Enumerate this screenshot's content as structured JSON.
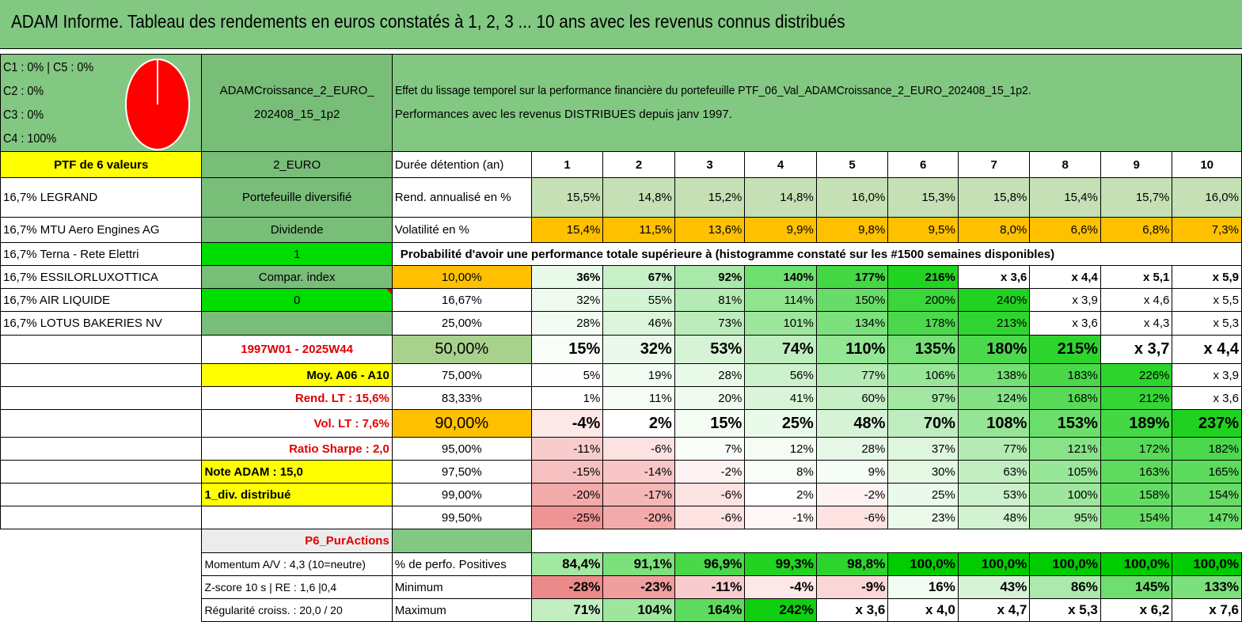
{
  "title": "ADAM Informe. Tableau des rendements en euros constatés à 1, 2, 3 ... 10 ans avec les revenus connus distribués",
  "legend": [
    "C1 : 0% | C5 : 0%",
    "C2 : 0%",
    "C3 : 0%",
    "C4 : 100%"
  ],
  "pie": {
    "C4": 100,
    "color": "#ff0000"
  },
  "fund_name_line1": "ADAMCroissance_2_EURO_",
  "fund_name_line2": "202408_15_1p2",
  "description_line1": "Effet du lissage temporel sur la performance financière du portefeuille PTF_06_Val_ADAMCroissance_2_EURO_202408_15_1p2.",
  "description_line2": "Performances avec les revenus DISTRIBUES depuis janv 1997.",
  "ptf_label": "PTF de 6 valeurs",
  "currency": "2_EURO",
  "holding_label": "Durée détention (an)",
  "years": [
    "1",
    "2",
    "3",
    "4",
    "5",
    "6",
    "7",
    "8",
    "9",
    "10"
  ],
  "holdings": [
    "16,7% LEGRAND",
    "16,7% MTU Aero Engines AG",
    "16,7% Terna - Rete Elettri",
    "16,7% ESSILORLUXOTTICA",
    "16,7% AIR LIQUIDE",
    "16,7% LOTUS BAKERIES NV"
  ],
  "info": {
    "diversified": "Portefeuille diversifié",
    "dividend": "Dividende",
    "dividend_value": "1",
    "compar_index": "Compar. index",
    "compar_value": "0",
    "period": "1997W01 - 2025W44",
    "moy": "Moy. A06 - A10",
    "rend_lt": "Rend. LT : 15,6%",
    "vol_lt": "Vol. LT : 7,6%",
    "sharpe": "Ratio Sharpe : 2,0",
    "note": "Note ADAM : 15,0",
    "div_distrib": "1_div. distribué",
    "profile": "P6_PurActions",
    "momentum": "Momentum A/V : 4,3 (10=neutre)",
    "zscore": "Z-score 10 s | RE : 1,6 |0,4",
    "regularite": "Régularité croiss. : 20,0 / 20"
  },
  "rend_label": "Rend. annualisé en %",
  "rend": [
    "15,5%",
    "14,8%",
    "15,2%",
    "14,8%",
    "16,0%",
    "15,3%",
    "15,8%",
    "15,4%",
    "15,7%",
    "16,0%"
  ],
  "vol_label": "Volatilité en %",
  "vol": [
    "15,4%",
    "11,5%",
    "13,6%",
    "9,9%",
    "9,8%",
    "9,5%",
    "8,0%",
    "6,6%",
    "6,8%",
    "7,3%"
  ],
  "prob_header": "Probabilité d'avoir une performance totale supérieure à (histogramme constaté sur les #1500 semaines disponibles)",
  "prob_rows": [
    {
      "p": "10,00%",
      "v": [
        "36%",
        "67%",
        "92%",
        "140%",
        "177%",
        "216%",
        "x 3,6",
        "x 4,4",
        "x 5,1",
        "x 5,9"
      ],
      "bg": [
        "#eafaea",
        "#c8f0c8",
        "#a8e8a8",
        "#6ee06e",
        "#44d844",
        "#22d422",
        "#fff",
        "#fff",
        "#fff",
        "#fff"
      ]
    },
    {
      "p": "16,67%",
      "v": [
        "32%",
        "55%",
        "81%",
        "114%",
        "150%",
        "200%",
        "240%",
        "x 3,9",
        "x 4,6",
        "x 5,5"
      ],
      "bg": [
        "#eefbee",
        "#d4f3d4",
        "#b4ebb4",
        "#90e490",
        "#68dc68",
        "#3ad63a",
        "#22d222",
        "#fff",
        "#fff",
        "#fff"
      ]
    },
    {
      "p": "25,00%",
      "v": [
        "28%",
        "46%",
        "73%",
        "101%",
        "134%",
        "178%",
        "213%",
        "x 3,6",
        "x 4,3",
        "x 5,3"
      ],
      "bg": [
        "#f2fcf2",
        "#dcf5dc",
        "#bcecbc",
        "#9ee69e",
        "#7ce07c",
        "#4cd84c",
        "#30d430",
        "#fff",
        "#fff",
        "#fff"
      ]
    },
    {
      "p": "50,00%",
      "v": [
        "15%",
        "32%",
        "53%",
        "74%",
        "110%",
        "135%",
        "180%",
        "215%",
        "x 3,7",
        "x 4,4"
      ],
      "bg": [
        "#f8fdf8",
        "#eaf9ea",
        "#d6f3d6",
        "#c0edc0",
        "#94e594",
        "#78df78",
        "#4cd84c",
        "#2ed42e",
        "#fff",
        "#fff"
      ]
    },
    {
      "p": "75,00%",
      "v": [
        "5%",
        "19%",
        "28%",
        "56%",
        "77%",
        "106%",
        "138%",
        "183%",
        "226%",
        "x 3,9"
      ],
      "bg": [
        "#fdfefd",
        "#f2fcf2",
        "#e8f9e8",
        "#ccf1cc",
        "#b4ebb4",
        "#98e698",
        "#74df74",
        "#48d848",
        "#2cd42c",
        "#fff"
      ]
    },
    {
      "p": "83,33%",
      "v": [
        "1%",
        "11%",
        "20%",
        "41%",
        "60%",
        "97%",
        "124%",
        "168%",
        "212%",
        "x 3,6"
      ],
      "bg": [
        "#ffffff",
        "#f6fdf6",
        "#eefbee",
        "#daf4da",
        "#c6efc6",
        "#a2e8a2",
        "#84e184",
        "#58da58",
        "#34d534",
        "#fff"
      ]
    },
    {
      "p": "90,00%",
      "v": [
        "-4%",
        "2%",
        "15%",
        "25%",
        "48%",
        "70%",
        "108%",
        "153%",
        "189%",
        "237%"
      ],
      "bg": [
        "#fde8e8",
        "#ffffff",
        "#f4fcf4",
        "#eafaea",
        "#d6f3d6",
        "#c0edc0",
        "#96e596",
        "#6cde6c",
        "#44d844",
        "#20d220"
      ]
    },
    {
      "p": "95,00%",
      "v": [
        "-11%",
        "-6%",
        "7%",
        "12%",
        "28%",
        "37%",
        "77%",
        "121%",
        "172%",
        "182%"
      ],
      "bg": [
        "#f8cccc",
        "#fde2e2",
        "#fafefa",
        "#f4fcf4",
        "#e6f9e6",
        "#ddf6dd",
        "#b4ebb4",
        "#88e288",
        "#58da58",
        "#4cd84c"
      ]
    },
    {
      "p": "97,50%",
      "v": [
        "-15%",
        "-14%",
        "-2%",
        "8%",
        "9%",
        "30%",
        "63%",
        "105%",
        "163%",
        "165%"
      ],
      "bg": [
        "#f6c0c0",
        "#f8c6c6",
        "#fef2f2",
        "#f8fdf8",
        "#f6fdf6",
        "#e4f8e4",
        "#c2eec2",
        "#98e698",
        "#5edb5e",
        "#5cda5c"
      ]
    },
    {
      "p": "99,00%",
      "v": [
        "-20%",
        "-17%",
        "-6%",
        "2%",
        "-2%",
        "25%",
        "53%",
        "100%",
        "158%",
        "154%"
      ],
      "bg": [
        "#f2aaaa",
        "#f4b8b8",
        "#fde2e2",
        "#ffffff",
        "#fef2f2",
        "#eafaea",
        "#ccf1cc",
        "#9ee69e",
        "#62dc62",
        "#66dc66"
      ]
    },
    {
      "p": "99,50%",
      "v": [
        "-25%",
        "-20%",
        "-6%",
        "-1%",
        "-6%",
        "23%",
        "48%",
        "95%",
        "154%",
        "147%"
      ],
      "bg": [
        "#ee9494",
        "#f2aaaa",
        "#fde2e2",
        "#fff6f6",
        "#fde2e2",
        "#ecfaec",
        "#d2f2d2",
        "#a6e8a6",
        "#66dc66",
        "#6cde6c"
      ]
    }
  ],
  "pos_label": "% de perfo. Positives",
  "pos": [
    "84,4%",
    "91,1%",
    "96,9%",
    "99,3%",
    "98,8%",
    "100,0%",
    "100,0%",
    "100,0%",
    "100,0%",
    "100,0%"
  ],
  "pos_bg": [
    "#a2e8a2",
    "#7ce07c",
    "#48d848",
    "#22d322",
    "#2cd42c",
    "#00cc00",
    "#00cc00",
    "#00cc00",
    "#00cc00",
    "#00cc00"
  ],
  "min_label": "Minimum",
  "min": [
    "-28%",
    "-23%",
    "-11%",
    "-4%",
    "-9%",
    "16%",
    "43%",
    "86%",
    "145%",
    "133%"
  ],
  "min_bg": [
    "#ec8a8a",
    "#f09e9e",
    "#f8cccc",
    "#fde8e8",
    "#fad6d6",
    "#f2fcf2",
    "#d6f3d6",
    "#aaeaaa",
    "#6ede6e",
    "#7ce07c"
  ],
  "max_label": "Maximum",
  "max": [
    "71%",
    "104%",
    "164%",
    "242%",
    "x 3,6",
    "x 4,0",
    "x 4,7",
    "x 5,3",
    "x 6,2",
    "x 7,6"
  ],
  "max_bg": [
    "#c2eec2",
    "#9ee69e",
    "#5edb5e",
    "#10cf10",
    "#fff",
    "#fff",
    "#fff",
    "#fff",
    "#fff",
    "#fff"
  ]
}
